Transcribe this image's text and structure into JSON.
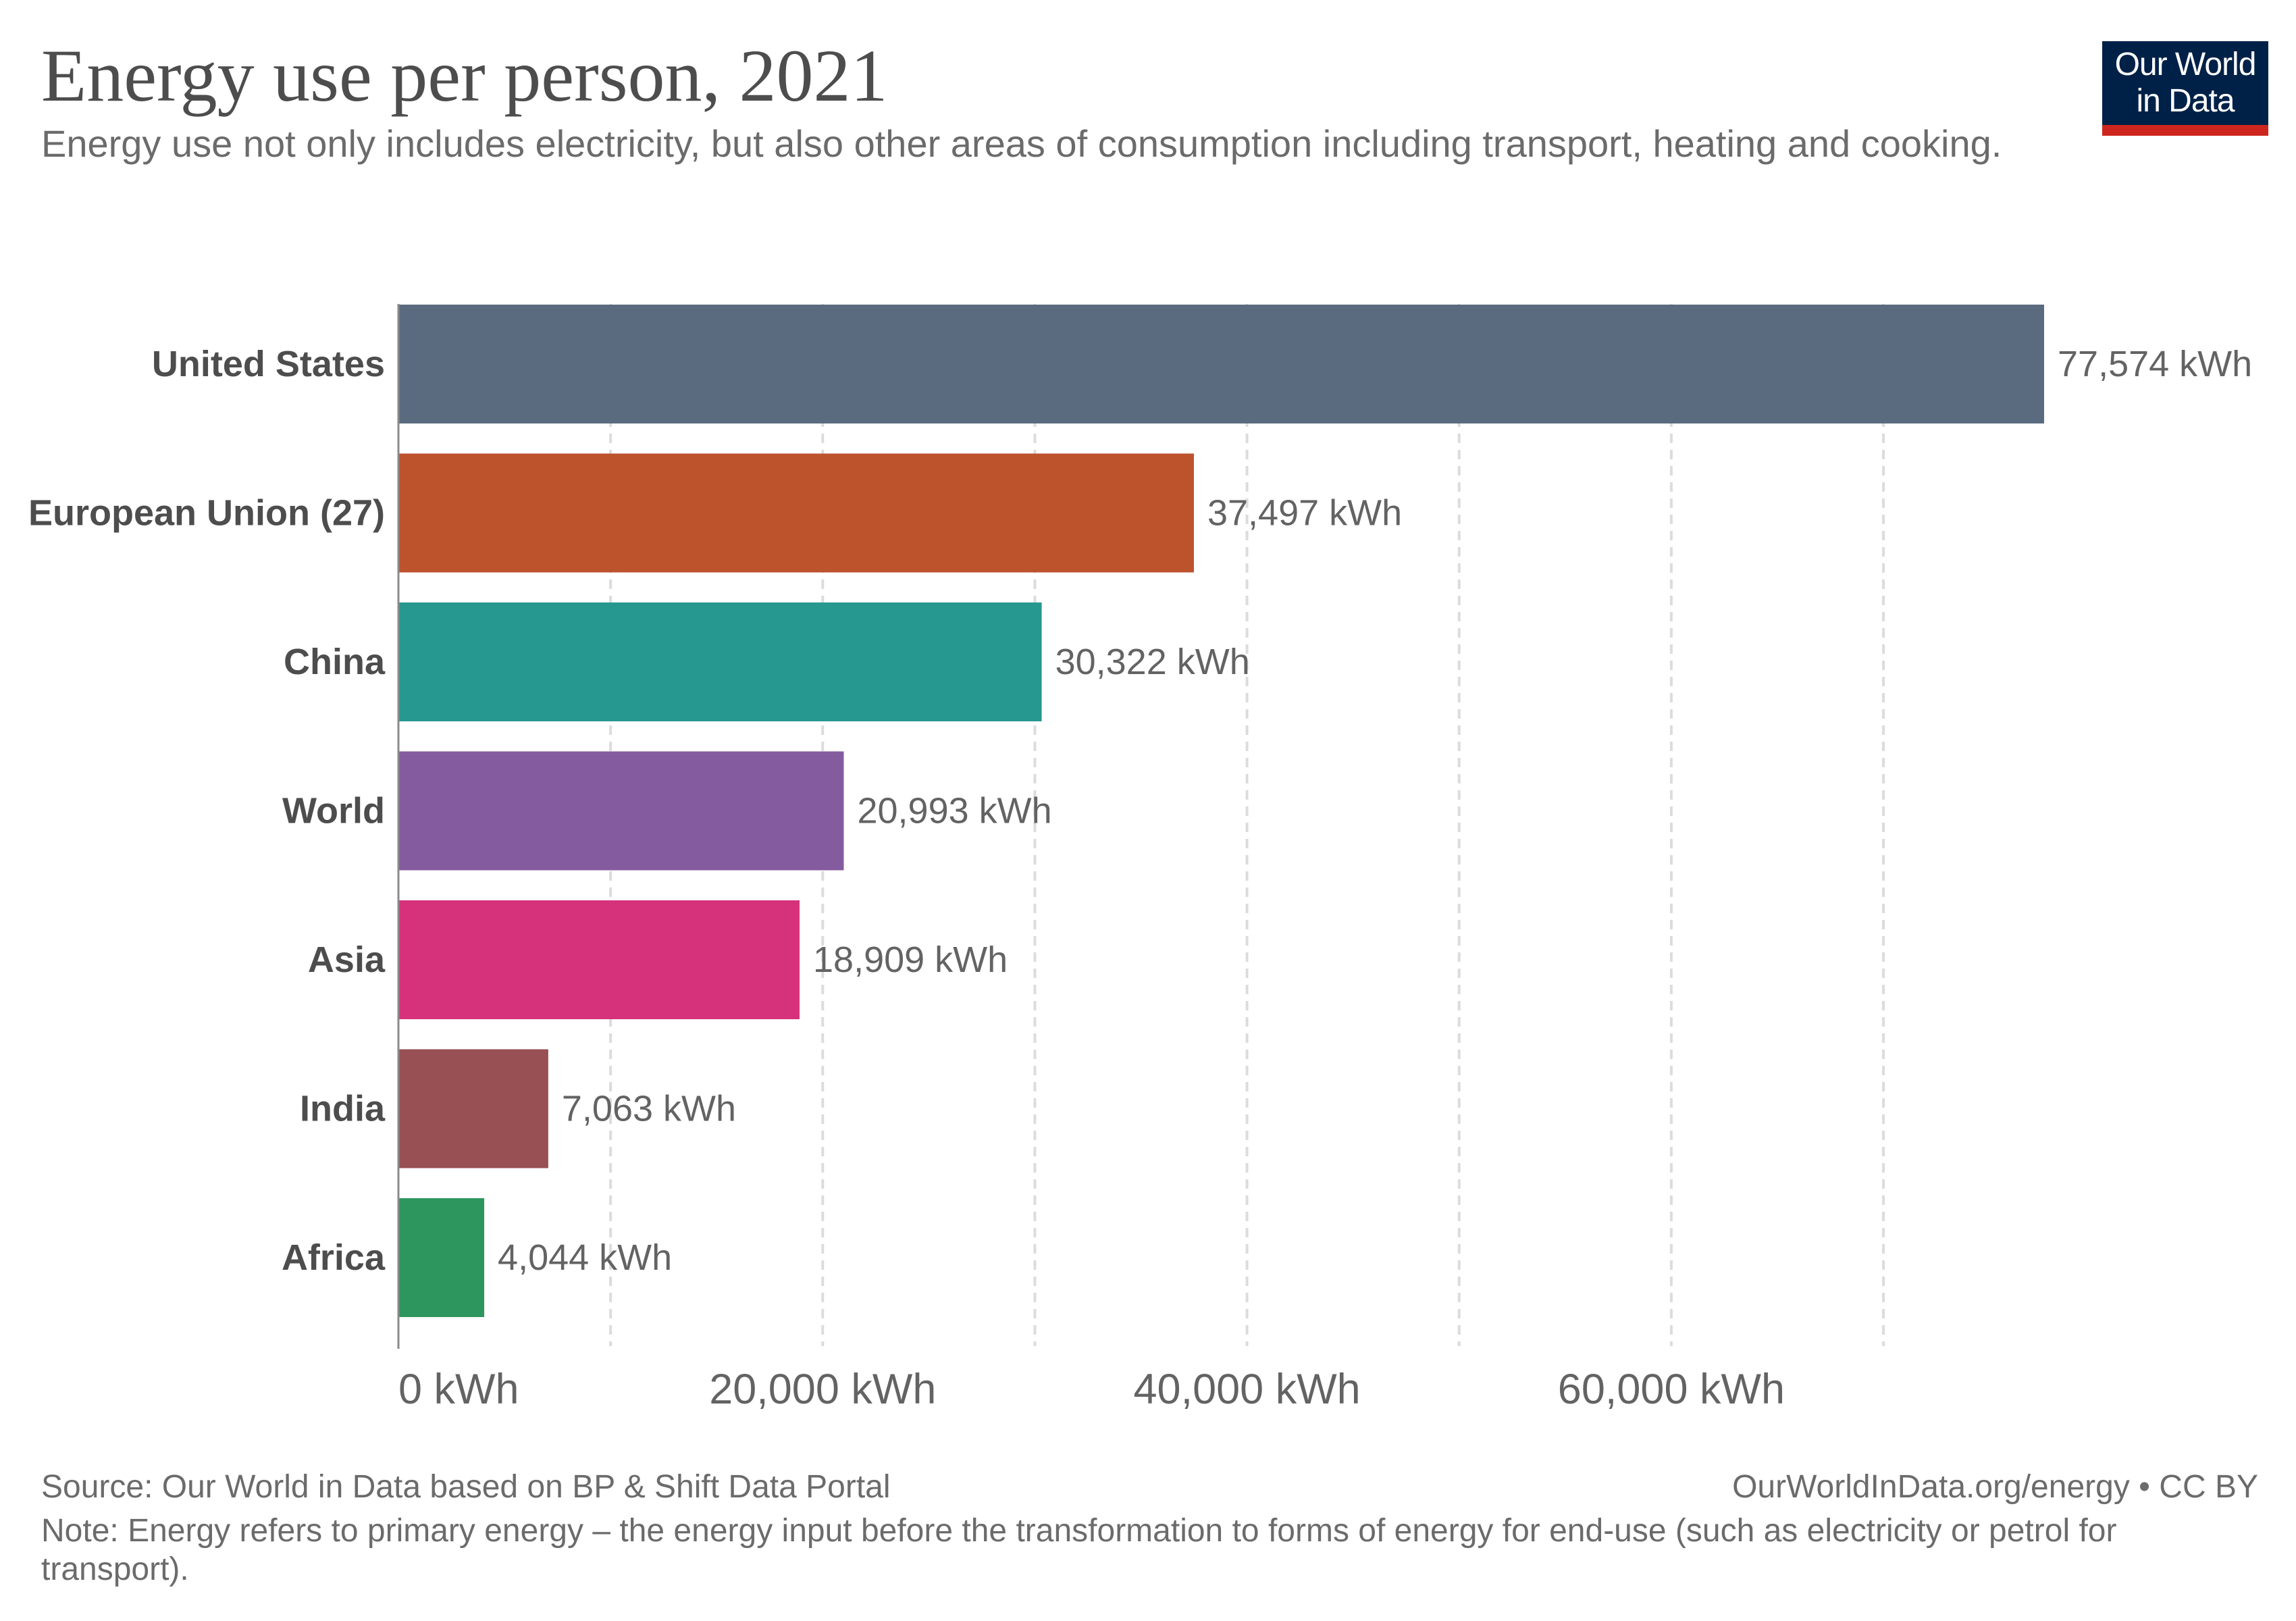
{
  "header": {
    "title": "Energy use per person, 2021",
    "subtitle": "Energy use not only includes electricity, but also other areas of consumption including transport, heating and cooking."
  },
  "logo": {
    "line1": "Our World",
    "line2": "in Data",
    "background_color": "#002147",
    "accent_color": "#ce261e"
  },
  "chart_data": {
    "type": "bar",
    "orientation": "horizontal",
    "categories": [
      "United States",
      "European Union (27)",
      "China",
      "World",
      "Asia",
      "India",
      "Africa"
    ],
    "values": [
      77574,
      37497,
      30322,
      20993,
      18909,
      7063,
      4044
    ],
    "value_labels": [
      "77,574 kWh",
      "37,497 kWh",
      "30,322 kWh",
      "20,993 kWh",
      "18,909 kWh",
      "7,063 kWh",
      "4,044 kWh"
    ],
    "colors": [
      "#5a6a7f",
      "#bc532d",
      "#26988f",
      "#845b9f",
      "#d5327b",
      "#985054",
      "#2c965e"
    ],
    "x_ticks": [
      0,
      20000,
      40000,
      60000
    ],
    "x_tick_labels": [
      "0 kWh",
      "20,000 kWh",
      "40,000 kWh",
      "60,000 kWh"
    ],
    "minor_gridlines": [
      10000,
      30000,
      50000,
      70000
    ],
    "xlim": [
      0,
      77574
    ],
    "grid": true,
    "title": "Energy use per person, 2021"
  },
  "footer": {
    "source": "Source: Our World in Data based on BP & Shift Data Portal",
    "link": "OurWorldInData.org/energy • CC BY",
    "note": "Note: Energy refers to primary energy – the energy input before the transformation to forms of energy for end-use (such as electricity or petrol for transport)."
  }
}
